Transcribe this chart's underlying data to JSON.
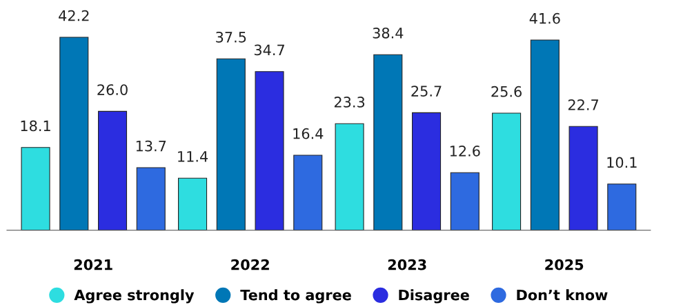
{
  "chart_data": {
    "type": "bar",
    "categories": [
      "2021",
      "2022",
      "2023",
      "2025"
    ],
    "series": [
      {
        "name": "Agree strongly",
        "color": "#2edde0",
        "values": [
          18.1,
          11.4,
          23.3,
          25.6
        ],
        "value_labels": [
          "18.1",
          "11.4",
          "23.3",
          "25.6"
        ]
      },
      {
        "name": "Tend to agree",
        "color": "#0077b6",
        "values": [
          42.2,
          37.5,
          38.4,
          41.6
        ],
        "value_labels": [
          "42.2",
          "37.5",
          "38.4",
          "41.6"
        ]
      },
      {
        "name": "Disagree",
        "color": "#2b2de0",
        "values": [
          26.0,
          34.7,
          25.7,
          22.7
        ],
        "value_labels": [
          "26.0",
          "34.7",
          "25.7",
          "22.7"
        ]
      },
      {
        "name": "Don’t know",
        "color": "#2e6ae0",
        "values": [
          13.7,
          16.4,
          12.6,
          10.1
        ],
        "value_labels": [
          "13.7",
          "16.4",
          "12.6",
          "10.1"
        ]
      }
    ],
    "legend": "bottom",
    "grid": false,
    "marker": "circle"
  }
}
